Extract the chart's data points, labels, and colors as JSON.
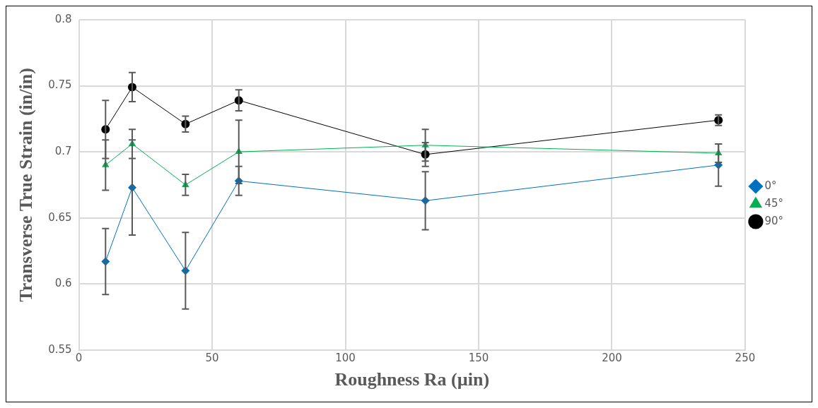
{
  "chart_data": {
    "type": "line",
    "xlabel": "Roughness Ra (µin)",
    "ylabel": "Transverse True Strain (in/in)",
    "xlim": [
      0,
      250
    ],
    "xticks": [
      0,
      50,
      100,
      150,
      200,
      250
    ],
    "ylim": [
      0.55,
      0.8
    ],
    "yticks": [
      0.55,
      0.6,
      0.65,
      0.7,
      0.75,
      0.8
    ],
    "grid": true,
    "legend": "right",
    "x": [
      10,
      20,
      40,
      60,
      130,
      240
    ],
    "series": [
      {
        "name": "0°",
        "color": "#0070c0",
        "marker": "diamond",
        "values": [
          0.617,
          0.673,
          0.61,
          0.678,
          0.663,
          0.69
        ],
        "errors": [
          0.025,
          0.036,
          0.029,
          0.011,
          0.022,
          0.016
        ]
      },
      {
        "name": "45°",
        "color": "#00b050",
        "marker": "triangle",
        "values": [
          0.69,
          0.706,
          0.675,
          0.7,
          0.705,
          0.699
        ],
        "errors": [
          0.019,
          0.011,
          0.008,
          0.024,
          0.012,
          0.007
        ]
      },
      {
        "name": "90°",
        "color": "#000000",
        "marker": "circle",
        "values": [
          0.717,
          0.749,
          0.721,
          0.739,
          0.698,
          0.724
        ],
        "errors": [
          0.022,
          0.011,
          0.006,
          0.008,
          0.009,
          0.004
        ]
      }
    ]
  }
}
